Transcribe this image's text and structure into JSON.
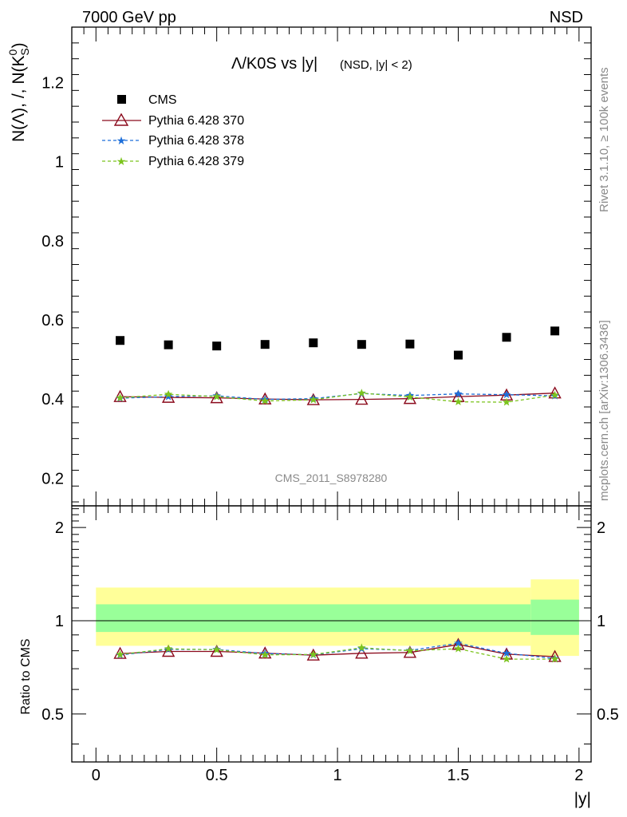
{
  "header": {
    "left": "7000 GeV pp",
    "right": "NSD"
  },
  "side": {
    "rivet": "Rivet 3.1.10, ≥ 100k events",
    "mcplots": "mcplots.cern.ch [arXiv:1306.3436]"
  },
  "plot": {
    "title_main": "Λ/K0S vs |y|",
    "title_sub": "(NSD, |y| < 2)",
    "ylabel": "N(Λ), /, N(K⁰S)",
    "watermark": "CMS_2011_S8978280",
    "xlabel": "|y|",
    "ratio_ylabel": "Ratio to CMS"
  },
  "legend": {
    "cms": "CMS",
    "p370": "Pythia 6.428 370",
    "p378": "Pythia 6.428 378",
    "p379": "Pythia 6.428 379"
  },
  "colors": {
    "cms": "#000000",
    "p370": "#8b0a1c",
    "p378": "#1e6fd9",
    "p379": "#7cc41e",
    "band_inner": "#99ff99",
    "band_outer": "#ffff99"
  },
  "chart_data": [
    {
      "type": "scatter",
      "x": [
        0.1,
        0.3,
        0.5,
        0.7,
        0.9,
        1.1,
        1.3,
        1.5,
        1.7,
        1.9
      ],
      "xlim": [
        -0.1,
        2.05
      ],
      "ylim": [
        0.13,
        1.34
      ],
      "xticks": [
        "0",
        "0.5",
        "1",
        "1.5",
        "2"
      ],
      "yticks": [
        "0.2",
        "0.4",
        "0.6",
        "0.8",
        "1",
        "1.2"
      ],
      "series": [
        {
          "name": "CMS",
          "values": [
            0.548,
            0.537,
            0.534,
            0.538,
            0.542,
            0.538,
            0.539,
            0.511,
            0.556,
            0.572
          ]
        },
        {
          "name": "Pythia 6.428 370",
          "values": [
            0.406,
            0.404,
            0.403,
            0.4,
            0.398,
            0.399,
            0.401,
            0.406,
            0.41,
            0.415
          ]
        },
        {
          "name": "Pythia 6.428 378",
          "values": [
            0.402,
            0.406,
            0.408,
            0.399,
            0.401,
            0.414,
            0.409,
            0.413,
            0.411,
            0.408
          ]
        },
        {
          "name": "Pythia 6.428 379",
          "values": [
            0.403,
            0.412,
            0.406,
            0.395,
            0.398,
            0.415,
            0.405,
            0.393,
            0.392,
            0.41
          ]
        }
      ]
    },
    {
      "type": "line",
      "x": [
        0.1,
        0.3,
        0.5,
        0.7,
        0.9,
        1.1,
        1.3,
        1.5,
        1.7,
        1.9
      ],
      "ylim": [
        0.35,
        2.35
      ],
      "yticks": [
        "0.5",
        "1",
        "2"
      ],
      "bands": {
        "edges": [
          0.0,
          1.8,
          2.0
        ],
        "inner": [
          [
            0.92,
            1.13
          ],
          [
            0.9,
            1.17
          ]
        ],
        "outer": [
          [
            0.83,
            1.28
          ],
          [
            0.77,
            1.36
          ]
        ]
      },
      "series": [
        {
          "name": "Pythia 6.428 370",
          "values": [
            0.784,
            0.796,
            0.796,
            0.786,
            0.774,
            0.785,
            0.79,
            0.838,
            0.78,
            0.766
          ]
        },
        {
          "name": "Pythia 6.428 378",
          "values": [
            0.775,
            0.808,
            0.808,
            0.784,
            0.776,
            0.812,
            0.802,
            0.846,
            0.785,
            0.755
          ]
        },
        {
          "name": "Pythia 6.428 379",
          "values": [
            0.778,
            0.812,
            0.806,
            0.776,
            0.778,
            0.818,
            0.8,
            0.812,
            0.752,
            0.752
          ]
        }
      ]
    }
  ]
}
